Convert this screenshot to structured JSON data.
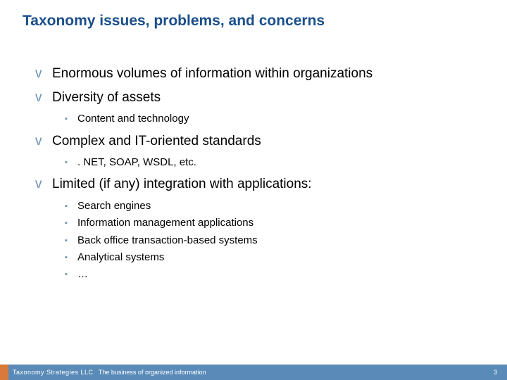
{
  "title": "Taxonomy issues, problems, and concerns",
  "items": [
    {
      "text": "Enormous volumes of information within organizations"
    },
    {
      "text": "Diversity of assets"
    },
    {
      "sub": [
        "Content and technology"
      ]
    },
    {
      "text": "Complex and IT-oriented standards"
    },
    {
      "sub": [
        ". NET, SOAP, WSDL, etc."
      ]
    },
    {
      "text": "Limited (if any) integration with applications:"
    },
    {
      "sub": [
        "Search engines",
        "Information management applications",
        "Back office transaction-based systems",
        "Analytical systems",
        "…"
      ]
    }
  ],
  "footer": {
    "company": "Taxonomy Strategies LLC",
    "tagline": "The business of organized information",
    "page": "3"
  },
  "colors": {
    "title": "#1a4f8c",
    "bullet": "#6b8fb3",
    "footer_bg": "#5a8bb8",
    "footer_accent": "#d97a3a",
    "bg": "#ffffff"
  }
}
